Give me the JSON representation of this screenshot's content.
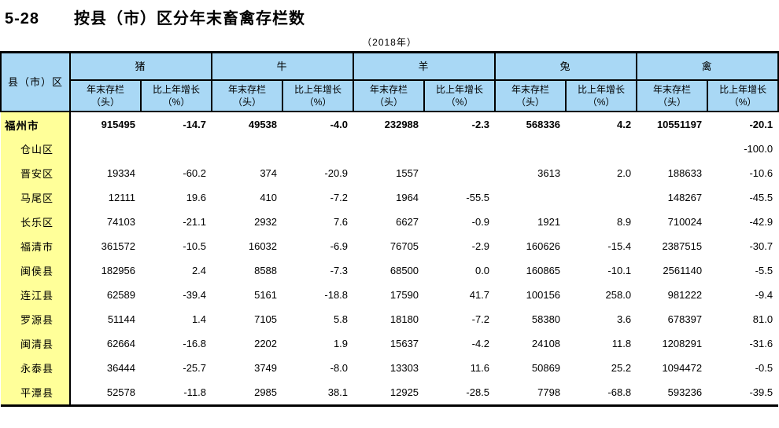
{
  "page": {
    "title_number": "5-28",
    "title": "按县（市）区分年末畜禽存栏数",
    "subtitle": "（2018年）"
  },
  "table": {
    "row_header": "县（市）区",
    "groups": [
      {
        "label": "猪"
      },
      {
        "label": "牛"
      },
      {
        "label": "羊"
      },
      {
        "label": "兔"
      },
      {
        "label": "禽"
      }
    ],
    "subheaders": {
      "stock_line1": "年末存栏",
      "stock_line2": "（头）",
      "growth_line1": "比上年增长",
      "growth_line2": "（%）"
    },
    "rows": [
      {
        "name": "福州市",
        "total": true,
        "values": [
          "915495",
          "-14.7",
          "49538",
          "-4.0",
          "232988",
          "-2.3",
          "568336",
          "4.2",
          "10551197",
          "-20.1"
        ]
      },
      {
        "name": "仓山区",
        "total": false,
        "values": [
          "",
          "",
          "",
          "",
          "",
          "",
          "",
          "",
          "",
          "-100.0"
        ]
      },
      {
        "name": "晋安区",
        "total": false,
        "values": [
          "19334",
          "-60.2",
          "374",
          "-20.9",
          "1557",
          "",
          "3613",
          "2.0",
          "188633",
          "-10.6"
        ]
      },
      {
        "name": "马尾区",
        "total": false,
        "values": [
          "12111",
          "19.6",
          "410",
          "-7.2",
          "1964",
          "-55.5",
          "",
          "",
          "148267",
          "-45.5"
        ]
      },
      {
        "name": "长乐区",
        "total": false,
        "values": [
          "74103",
          "-21.1",
          "2932",
          "7.6",
          "6627",
          "-0.9",
          "1921",
          "8.9",
          "710024",
          "-42.9"
        ]
      },
      {
        "name": "福清市",
        "total": false,
        "values": [
          "361572",
          "-10.5",
          "16032",
          "-6.9",
          "76705",
          "-2.9",
          "160626",
          "-15.4",
          "2387515",
          "-30.7"
        ]
      },
      {
        "name": "闽侯县",
        "total": false,
        "values": [
          "182956",
          "2.4",
          "8588",
          "-7.3",
          "68500",
          "0.0",
          "160865",
          "-10.1",
          "2561140",
          "-5.5"
        ]
      },
      {
        "name": "连江县",
        "total": false,
        "values": [
          "62589",
          "-39.4",
          "5161",
          "-18.8",
          "17590",
          "41.7",
          "100156",
          "258.0",
          "981222",
          "-9.4"
        ]
      },
      {
        "name": "罗源县",
        "total": false,
        "values": [
          "51144",
          "1.4",
          "7105",
          "5.8",
          "18180",
          "-7.2",
          "58380",
          "3.6",
          "678397",
          "81.0"
        ]
      },
      {
        "name": "闽清县",
        "total": false,
        "values": [
          "62664",
          "-16.8",
          "2202",
          "1.9",
          "15637",
          "-4.2",
          "24108",
          "11.8",
          "1208291",
          "-31.6"
        ]
      },
      {
        "name": "永泰县",
        "total": false,
        "values": [
          "36444",
          "-25.7",
          "3749",
          "-8.0",
          "13303",
          "11.6",
          "50869",
          "25.2",
          "1094472",
          "-0.5"
        ]
      },
      {
        "name": "平潭县",
        "total": false,
        "values": [
          "52578",
          "-11.8",
          "2985",
          "38.1",
          "12925",
          "-28.5",
          "7798",
          "-68.8",
          "593236",
          "-39.5"
        ]
      }
    ],
    "colors": {
      "header_bg": "#a9d8f5",
      "row_header_bg": "#ffff99",
      "border": "#000000"
    }
  },
  "chart_data": {
    "type": "table",
    "title": "5-28 按县（市）区分年末畜禽存栏数（2018年）",
    "columns": [
      "县（市）区",
      "猪-年末存栏（头）",
      "猪-比上年增长（%）",
      "牛-年末存栏（头）",
      "牛-比上年增长（%）",
      "羊-年末存栏（头）",
      "羊-比上年增长（%）",
      "兔-年末存栏（头）",
      "兔-比上年增长（%）",
      "禽-年末存栏（头）",
      "禽-比上年增长（%）"
    ],
    "rows": [
      [
        "福州市",
        915495,
        -14.7,
        49538,
        -4.0,
        232988,
        -2.3,
        568336,
        4.2,
        10551197,
        -20.1
      ],
      [
        "仓山区",
        null,
        null,
        null,
        null,
        null,
        null,
        null,
        null,
        null,
        -100.0
      ],
      [
        "晋安区",
        19334,
        -60.2,
        374,
        -20.9,
        1557,
        null,
        3613,
        2.0,
        188633,
        -10.6
      ],
      [
        "马尾区",
        12111,
        19.6,
        410,
        -7.2,
        1964,
        -55.5,
        null,
        null,
        148267,
        -45.5
      ],
      [
        "长乐区",
        74103,
        -21.1,
        2932,
        7.6,
        6627,
        -0.9,
        1921,
        8.9,
        710024,
        -42.9
      ],
      [
        "福清市",
        361572,
        -10.5,
        16032,
        -6.9,
        76705,
        -2.9,
        160626,
        -15.4,
        2387515,
        -30.7
      ],
      [
        "闽侯县",
        182956,
        2.4,
        8588,
        -7.3,
        68500,
        0.0,
        160865,
        -10.1,
        2561140,
        -5.5
      ],
      [
        "连江县",
        62589,
        -39.4,
        5161,
        -18.8,
        17590,
        41.7,
        100156,
        258.0,
        981222,
        -9.4
      ],
      [
        "罗源县",
        51144,
        1.4,
        7105,
        5.8,
        18180,
        -7.2,
        58380,
        3.6,
        678397,
        81.0
      ],
      [
        "闽清县",
        62664,
        -16.8,
        2202,
        1.9,
        15637,
        -4.2,
        24108,
        11.8,
        1208291,
        -31.6
      ],
      [
        "永泰县",
        36444,
        -25.7,
        3749,
        -8.0,
        13303,
        11.6,
        50869,
        25.2,
        1094472,
        -0.5
      ],
      [
        "平潭县",
        52578,
        -11.8,
        2985,
        38.1,
        12925,
        -28.5,
        7798,
        -68.8,
        593236,
        -39.5
      ]
    ]
  }
}
